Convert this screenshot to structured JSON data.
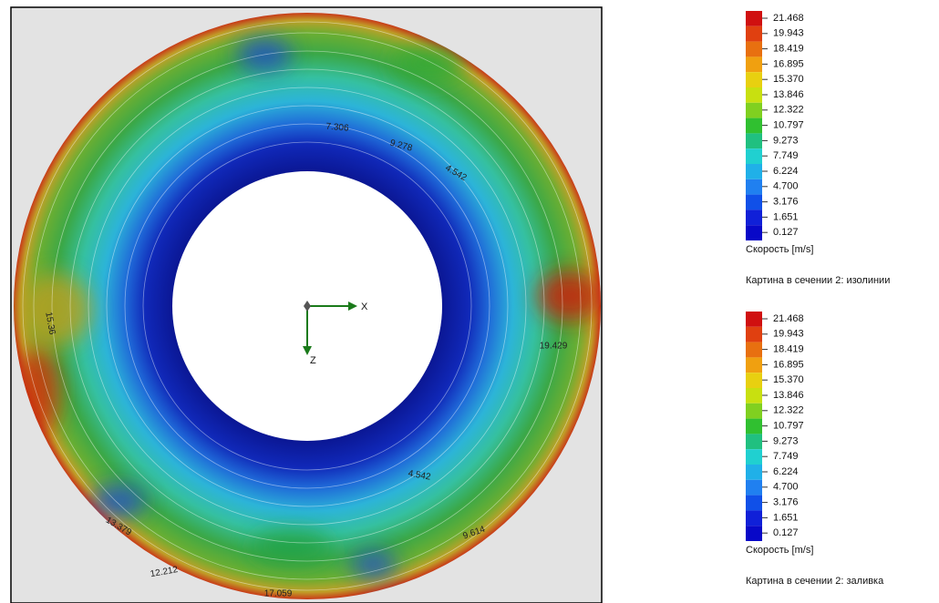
{
  "view": {
    "axes": {
      "x": "X",
      "z": "Z"
    },
    "contour_labels": [
      "7.306",
      "9.278",
      "4.542",
      "15.36",
      "19.429",
      "12.212",
      "17.059",
      "4.542",
      "9.614",
      "13.379"
    ]
  },
  "legends": [
    {
      "ticks": [
        "21.468",
        "19.943",
        "18.419",
        "16.895",
        "15.370",
        "13.846",
        "12.322",
        "10.797",
        "9.273",
        "7.749",
        "6.224",
        "4.700",
        "3.176",
        "1.651",
        "0.127"
      ],
      "unit": "Скорость [m/s]",
      "caption": "Картина в сечении 2: изолинии"
    },
    {
      "ticks": [
        "21.468",
        "19.943",
        "18.419",
        "16.895",
        "15.370",
        "13.846",
        "12.322",
        "10.797",
        "9.273",
        "7.749",
        "6.224",
        "4.700",
        "3.176",
        "1.651",
        "0.127"
      ],
      "unit": "Скорость [m/s]",
      "caption": "Картина в сечении 2: заливка"
    }
  ]
}
